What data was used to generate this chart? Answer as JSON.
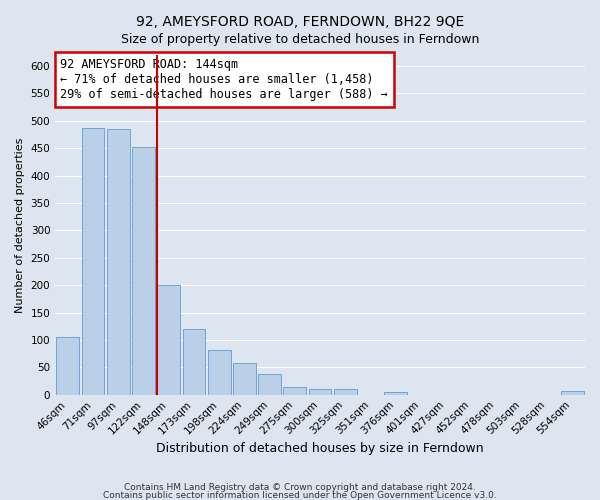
{
  "title": "92, AMEYSFORD ROAD, FERNDOWN, BH22 9QE",
  "subtitle": "Size of property relative to detached houses in Ferndown",
  "xlabel": "Distribution of detached houses by size in Ferndown",
  "ylabel": "Number of detached properties",
  "footer_line1": "Contains HM Land Registry data © Crown copyright and database right 2024.",
  "footer_line2": "Contains public sector information licensed under the Open Government Licence v3.0.",
  "bar_labels": [
    "46sqm",
    "71sqm",
    "97sqm",
    "122sqm",
    "148sqm",
    "173sqm",
    "198sqm",
    "224sqm",
    "249sqm",
    "275sqm",
    "300sqm",
    "325sqm",
    "351sqm",
    "376sqm",
    "401sqm",
    "427sqm",
    "452sqm",
    "478sqm",
    "503sqm",
    "528sqm",
    "554sqm"
  ],
  "bar_values": [
    105,
    487,
    485,
    452,
    200,
    120,
    82,
    57,
    38,
    15,
    10,
    10,
    0,
    5,
    0,
    0,
    0,
    0,
    0,
    0,
    7
  ],
  "bar_color": "#bad0e8",
  "bar_edgecolor": "#6699cc",
  "vline_color": "#cc0000",
  "annotation_title": "92 AMEYSFORD ROAD: 144sqm",
  "annotation_line1": "← 71% of detached houses are smaller (1,458)",
  "annotation_line2": "29% of semi-detached houses are larger (588) →",
  "annotation_box_edgecolor": "#cc0000",
  "ylim": [
    0,
    620
  ],
  "yticks": [
    0,
    50,
    100,
    150,
    200,
    250,
    300,
    350,
    400,
    450,
    500,
    550,
    600
  ],
  "background_color": "#dde6f0",
  "grid_color": "#ffffff",
  "title_fontsize": 10,
  "subtitle_fontsize": 9,
  "xlabel_fontsize": 9,
  "ylabel_fontsize": 8,
  "tick_fontsize": 7.5,
  "annotation_title_fontsize": 8.5,
  "annotation_body_fontsize": 8.5,
  "footer_fontsize": 6.5
}
